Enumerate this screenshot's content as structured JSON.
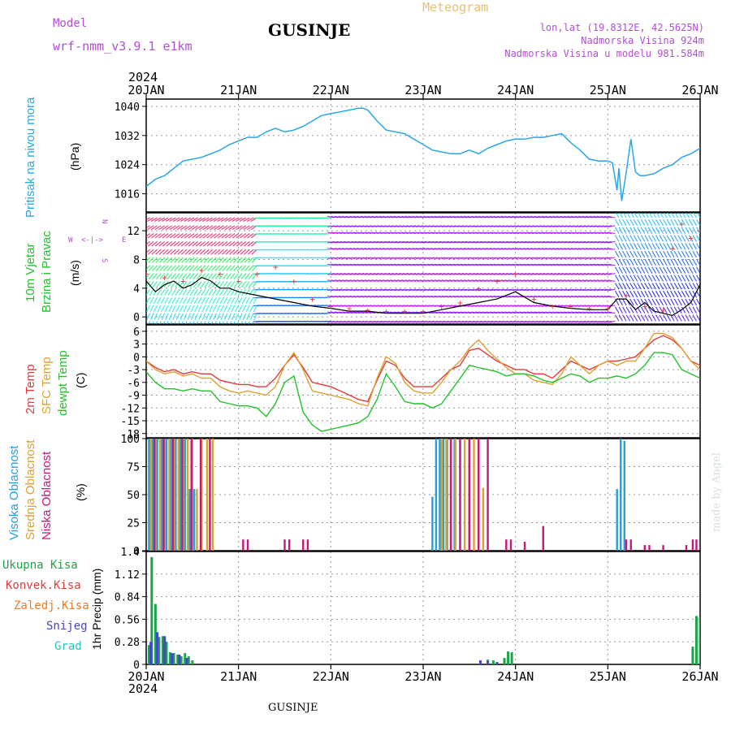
{
  "header": {
    "model_label": "Model",
    "model_name": "wrf-nmm_v3.9.1 e1km",
    "meteogram_label": "Meteogram",
    "station": "GUSINJE",
    "lonlat": "lon,lat (19.8312E, 42.5625N)",
    "elevation": "Nadmorska Visina 924m",
    "model_elevation": "Nadmorska Visina u modelu 981.584m",
    "year_top": "2024",
    "year_bottom": "2024",
    "footer_station": "GUSINJE",
    "credit": "made by Angel"
  },
  "time_axis": {
    "labels": [
      "20JAN",
      "21JAN",
      "22JAN",
      "23JAN",
      "24JAN",
      "25JAN",
      "26JAN"
    ],
    "start_day": 20,
    "end_day": 26
  },
  "colors": {
    "pressure": "#2aa6e6",
    "temp2m": "#e23b3b",
    "sfc": "#e0a030",
    "dewpt": "#22c22a",
    "high_cloud": "#21a0e0",
    "mid_cloud": "#e0a030",
    "low_cloud": "#c8167c",
    "total_precip": "#1fa34a",
    "conv_precip": "#e23b3b",
    "frz_precip": "#f07a1e",
    "snow": "#4343d8",
    "graupel": "#21c6c0",
    "wind_speed": "#000000",
    "gust": "#e23b3b",
    "panel_label_purple": "#b04fd0"
  },
  "chart_data": [
    {
      "type": "line",
      "name": "pressure",
      "ylabel_rotated": "Pritisak na nivou mora",
      "unit": "(hPa)",
      "ylim": [
        1011,
        1042
      ],
      "yticks": [
        1016,
        1024,
        1032,
        1040
      ],
      "grid": true,
      "x": [
        20.0,
        20.1,
        20.2,
        20.3,
        20.4,
        20.5,
        20.6,
        20.7,
        20.8,
        20.9,
        21.0,
        21.1,
        21.2,
        21.3,
        21.4,
        21.5,
        21.6,
        21.7,
        21.8,
        21.9,
        22.0,
        22.1,
        22.2,
        22.3,
        22.35,
        22.4,
        22.5,
        22.6,
        22.7,
        22.8,
        22.9,
        23.0,
        23.1,
        23.2,
        23.3,
        23.4,
        23.5,
        23.6,
        23.7,
        23.8,
        23.9,
        24.0,
        24.1,
        24.2,
        24.3,
        24.4,
        24.5,
        24.6,
        24.7,
        24.8,
        24.9,
        25.0,
        25.05,
        25.1,
        25.12,
        25.15,
        25.2,
        25.25,
        25.3,
        25.35,
        25.4,
        25.5,
        25.6,
        25.7,
        25.8,
        25.9,
        26.0
      ],
      "values": [
        1018,
        1020,
        1021,
        1023,
        1025,
        1025.5,
        1026,
        1027,
        1028,
        1029.5,
        1030.5,
        1031.5,
        1031.5,
        1033,
        1034,
        1033,
        1033.5,
        1034.5,
        1036,
        1037.5,
        1038,
        1038.5,
        1039,
        1039.5,
        1039.5,
        1039,
        1036,
        1033.5,
        1033,
        1032.5,
        1031,
        1029.5,
        1028,
        1027.5,
        1027,
        1027,
        1028,
        1027,
        1028.5,
        1029.5,
        1030.5,
        1031,
        1031,
        1031.5,
        1031.5,
        1032,
        1032.5,
        1030,
        1028,
        1025.5,
        1025,
        1025,
        1024.5,
        1017,
        1023,
        1014,
        1022,
        1031,
        1022,
        1021,
        1021,
        1021.5,
        1023,
        1024,
        1026,
        1027,
        1028.5
      ]
    },
    {
      "type": "line",
      "name": "wind",
      "ylabel_rotated_1": "10m Vjetar",
      "ylabel_rotated_2": "Brzina i Pravac",
      "unit": "(m/s)",
      "ylim": [
        -1,
        14.5
      ],
      "yticks": [
        0,
        4,
        8,
        12
      ],
      "grid": true,
      "compass": {
        "n": "N",
        "s": "S",
        "w": "W",
        "e": "E"
      },
      "series": [
        {
          "kind": "speed",
          "x": [
            20.0,
            20.1,
            20.2,
            20.3,
            20.4,
            20.5,
            20.6,
            20.7,
            20.8,
            20.9,
            21.0,
            21.2,
            21.4,
            21.6,
            21.8,
            22.0,
            22.2,
            22.4,
            22.6,
            22.8,
            23.0,
            23.2,
            23.4,
            23.6,
            23.8,
            24.0,
            24.2,
            24.4,
            24.6,
            24.8,
            25.0,
            25.1,
            25.2,
            25.3,
            25.4,
            25.5,
            25.6,
            25.7,
            25.8,
            25.9,
            26.0
          ],
          "values": [
            5,
            3.5,
            4.5,
            5,
            4,
            4.5,
            5.5,
            5,
            4,
            4,
            3.5,
            3,
            2.5,
            2,
            1.5,
            1.2,
            0.8,
            0.8,
            0.5,
            0.5,
            0.5,
            1,
            1.5,
            2,
            2.5,
            3.5,
            2,
            1.5,
            1.2,
            1,
            1,
            2.5,
            2.5,
            1,
            2,
            0.8,
            0.5,
            0.2,
            1,
            2,
            4.5
          ]
        },
        {
          "kind": "gust",
          "x": [
            20.0,
            20.2,
            20.4,
            20.6,
            20.8,
            21.0,
            21.2,
            21.4,
            21.6,
            21.8,
            22.0,
            22.2,
            22.4,
            22.6,
            22.8,
            23.0,
            23.2,
            23.4,
            23.6,
            23.8,
            24.0,
            24.2,
            24.4,
            24.6,
            24.8,
            25.0,
            25.2,
            25.4,
            25.6,
            25.7,
            25.8,
            25.9,
            26.0
          ],
          "values": [
            6,
            5.5,
            5,
            6.5,
            6,
            5,
            6,
            7,
            5,
            2.5,
            1.5,
            1.2,
            1,
            0.8,
            0.8,
            0.8,
            1.5,
            2,
            4,
            5,
            6,
            2.5,
            1.5,
            1.5,
            1.2,
            1.2,
            3,
            1.5,
            1,
            9.5,
            13,
            11,
            12
          ]
        }
      ]
    },
    {
      "type": "line",
      "name": "temperature",
      "ylabel_rotated_1": "2m Temp",
      "ylabel_rotated_2": "SFC Temp",
      "ylabel_rotated_3": "dewpt Temp",
      "unit": "(C)",
      "ylim": [
        -19,
        7.5
      ],
      "yticks": [
        6,
        3,
        0,
        -3,
        -6,
        -9,
        -12,
        -15,
        -18
      ],
      "grid": true,
      "x": [
        20.0,
        20.1,
        20.2,
        20.3,
        20.4,
        20.5,
        20.6,
        20.7,
        20.8,
        20.9,
        21.0,
        21.1,
        21.2,
        21.3,
        21.4,
        21.5,
        21.6,
        21.7,
        21.8,
        21.9,
        22.0,
        22.1,
        22.2,
        22.3,
        22.4,
        22.5,
        22.6,
        22.7,
        22.8,
        22.9,
        23.0,
        23.1,
        23.2,
        23.3,
        23.4,
        23.5,
        23.6,
        23.7,
        23.8,
        23.9,
        24.0,
        24.1,
        24.2,
        24.3,
        24.4,
        24.5,
        24.6,
        24.7,
        24.8,
        24.9,
        25.0,
        25.1,
        25.2,
        25.3,
        25.4,
        25.5,
        25.6,
        25.7,
        25.8,
        25.9,
        26.0
      ],
      "series": [
        {
          "kind": "temp2m",
          "values": [
            -1,
            -2.5,
            -3.5,
            -3,
            -4,
            -3.5,
            -4,
            -4,
            -5.5,
            -6,
            -6.5,
            -6.5,
            -7,
            -7,
            -5,
            -2,
            0.5,
            -2.5,
            -6,
            -6.5,
            -7,
            -8,
            -9,
            -10,
            -10.5,
            -5.5,
            -1,
            -2,
            -5,
            -7,
            -7,
            -7,
            -5,
            -3,
            -2,
            1.5,
            2,
            0.5,
            -1,
            -2,
            -3,
            -3,
            -4,
            -4,
            -5,
            -3,
            -1,
            -2,
            -3,
            -2,
            -1,
            -1,
            -0.5,
            0,
            2,
            4,
            5,
            4,
            2,
            -1,
            -2
          ]
        },
        {
          "kind": "sfc",
          "values": [
            -1,
            -3,
            -4,
            -3.5,
            -4.5,
            -4,
            -5,
            -5,
            -7,
            -8,
            -8.5,
            -8,
            -8.5,
            -9,
            -7,
            -2,
            1,
            -3,
            -8,
            -8.5,
            -9,
            -9.5,
            -10,
            -11,
            -11.5,
            -5,
            0,
            -1.5,
            -6,
            -8,
            -8.5,
            -8.5,
            -6,
            -3,
            -1,
            2,
            4,
            1.5,
            -0.5,
            -2.5,
            -4,
            -4,
            -5.5,
            -6,
            -6.5,
            -4,
            0,
            -2,
            -4,
            -2,
            -1,
            -2,
            -1,
            -1,
            2,
            5.5,
            5.5,
            4.5,
            2,
            -1,
            -3
          ]
        },
        {
          "kind": "dewpt",
          "values": [
            -3.5,
            -6,
            -7.5,
            -7.5,
            -8,
            -7.5,
            -8,
            -8,
            -10.5,
            -11,
            -11.5,
            -11.5,
            -12,
            -14,
            -11,
            -6,
            -4.5,
            -13,
            -16,
            -17.5,
            -17,
            -16.5,
            -16,
            -15.5,
            -14,
            -10,
            -4,
            -7,
            -10.5,
            -11,
            -11,
            -12,
            -11,
            -8,
            -5,
            -2,
            -2.5,
            -3,
            -3.5,
            -4.5,
            -4,
            -4,
            -4.5,
            -5.5,
            -6,
            -5,
            -4,
            -4.5,
            -6,
            -5,
            -5,
            -4.5,
            -5,
            -4,
            -2,
            1,
            1,
            0.5,
            -3,
            -4,
            -5
          ]
        }
      ]
    },
    {
      "type": "bar",
      "name": "cloud_cover",
      "ylabel_rotated_1": "Visoka Oblacnost",
      "ylabel_rotated_2": "Srednja Oblacnost",
      "ylabel_rotated_3": "Niska Oblacnost",
      "unit": "(%)",
      "ylim": [
        0,
        100
      ],
      "yticks": [
        0,
        25,
        50,
        75,
        100
      ],
      "grid": true,
      "series": [
        {
          "kind": "high_cloud",
          "x": [
            20.03,
            20.07,
            20.12,
            20.17,
            20.22,
            20.27,
            20.32,
            20.37,
            20.42,
            20.47,
            20.52,
            23.1,
            23.14,
            23.18,
            23.22,
            23.26,
            23.3,
            23.34,
            25.1,
            25.14,
            25.18
          ],
          "values": [
            100,
            100,
            100,
            100,
            100,
            100,
            100,
            100,
            100,
            55,
            55,
            48,
            100,
            100,
            100,
            100,
            100,
            100,
            55,
            100,
            98
          ]
        },
        {
          "kind": "mid_cloud",
          "x": [
            20.05,
            20.1,
            20.15,
            20.2,
            20.25,
            20.3,
            20.35,
            20.4,
            20.45,
            20.5,
            20.55,
            20.6,
            20.66,
            20.72,
            23.2,
            23.25,
            23.3,
            23.35,
            23.4,
            23.45,
            23.5,
            23.55,
            23.6,
            23.65
          ],
          "values": [
            100,
            100,
            100,
            100,
            100,
            100,
            100,
            100,
            100,
            100,
            55,
            100,
            100,
            100,
            100,
            100,
            100,
            100,
            100,
            100,
            100,
            100,
            100,
            56
          ]
        },
        {
          "kind": "low_cloud",
          "x": [
            20.09,
            20.19,
            20.29,
            20.39,
            20.49,
            20.59,
            20.69,
            21.05,
            21.1,
            21.5,
            21.55,
            21.7,
            21.75,
            23.3,
            23.4,
            23.5,
            23.6,
            23.7,
            23.9,
            23.95,
            24.1,
            24.3,
            25.2,
            25.25,
            25.4,
            25.45,
            25.6,
            25.85,
            25.92,
            25.96
          ],
          "values": [
            100,
            100,
            100,
            100,
            100,
            100,
            100,
            10,
            10,
            10,
            10,
            10,
            10,
            100,
            100,
            100,
            100,
            100,
            10,
            10,
            8,
            22,
            10,
            10,
            5,
            5,
            5,
            5,
            10,
            10
          ]
        }
      ]
    },
    {
      "type": "bar",
      "name": "precipitation",
      "ylabel_rotated": "1hr Precip (mm)",
      "legend_labels": [
        "Ukupna Kisa",
        "Konvek.Kisa",
        "Zaledj.Kisa",
        "Snijeg",
        "Grad"
      ],
      "ylim": [
        0,
        1.4
      ],
      "yticks": [
        0,
        0.28,
        0.56,
        0.84,
        1.12,
        1.4
      ],
      "ytick_labels": [
        "0",
        "0.28",
        "0.56",
        "0.84",
        "1.12",
        "1.4"
      ],
      "grid": true,
      "series": [
        {
          "kind": "total_precip",
          "x": [
            20.03,
            20.06,
            20.1,
            20.14,
            20.18,
            20.22,
            20.26,
            20.3,
            20.34,
            20.38,
            20.42,
            20.46,
            20.5,
            23.7,
            23.76,
            23.88,
            23.92,
            23.96,
            25.92,
            25.96,
            26.0
          ],
          "values": [
            0.24,
            1.33,
            0.75,
            0.34,
            0.35,
            0.28,
            0.15,
            0.14,
            0.12,
            0.1,
            0.14,
            0.1,
            0.05,
            0.06,
            0.05,
            0.08,
            0.16,
            0.15,
            0.22,
            0.6,
            0.58
          ]
        },
        {
          "kind": "snow",
          "x": [
            20.05,
            20.12,
            20.2,
            20.28,
            20.36,
            20.44,
            23.62,
            23.7,
            23.8
          ],
          "values": [
            0.28,
            0.4,
            0.35,
            0.14,
            0.12,
            0.08,
            0.05,
            0.04,
            0.03
          ]
        }
      ]
    }
  ]
}
